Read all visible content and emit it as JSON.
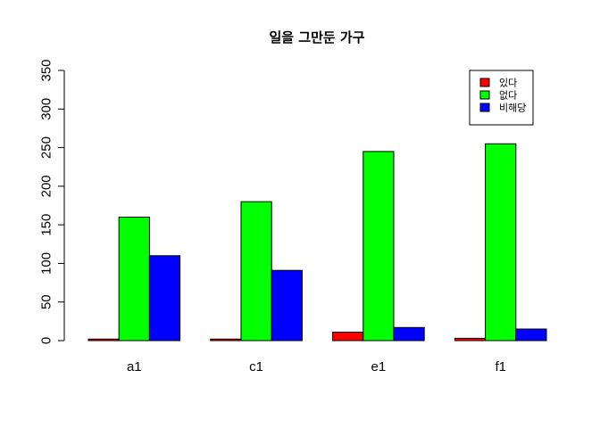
{
  "chart_data": {
    "type": "bar",
    "title": "일을 그만둔 가구",
    "xlabel": "",
    "ylabel": "",
    "categories": [
      "a1",
      "c1",
      "e1",
      "f1"
    ],
    "series": [
      {
        "name": "있다",
        "color": "#ff0000",
        "values": [
          2,
          2,
          11,
          3
        ]
      },
      {
        "name": "없다",
        "color": "#00ff00",
        "values": [
          160,
          180,
          245,
          255
        ]
      },
      {
        "name": "비해당",
        "color": "#0000ff",
        "values": [
          110,
          91,
          17,
          15
        ]
      }
    ],
    "ylim": [
      0,
      350
    ],
    "yticks": [
      0,
      50,
      100,
      150,
      200,
      250,
      300,
      350
    ],
    "grid": false,
    "legend_position": "top-right"
  }
}
